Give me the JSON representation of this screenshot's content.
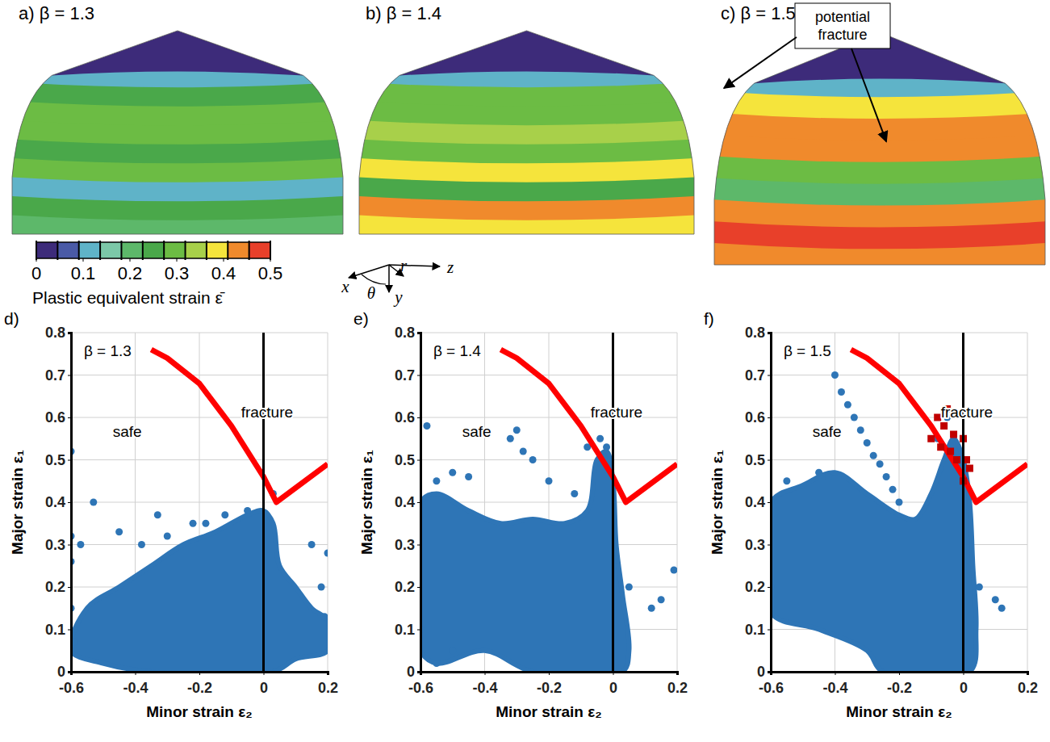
{
  "chart_data": [
    {
      "type": "contour",
      "title": "a) β = 1.3",
      "contour_bands": [
        0,
        0.12,
        0.25,
        0.28,
        0.3,
        0.25,
        0.28,
        0.1,
        0.25,
        0.22
      ]
    },
    {
      "type": "contour",
      "title": "b) β = 1.4",
      "contour_bands": [
        0,
        0.12,
        0.28,
        0.3,
        0.35,
        0.3,
        0.4,
        0.25,
        0.42,
        0.38
      ]
    },
    {
      "type": "contour",
      "title": "c) β = 1.5",
      "contour_bands": [
        0,
        0.12,
        0.4,
        0.42,
        0.45,
        0.3,
        0.22,
        0.45,
        0.48,
        0.42
      ],
      "annotations": [
        "potential fracture"
      ]
    },
    {
      "type": "scatter",
      "panel": "d)",
      "xlabel": "Minor strain ε₂",
      "ylabel": "Major strain ε₁",
      "xlim": [
        -0.6,
        0.2
      ],
      "ylim": [
        0,
        0.8
      ],
      "xticks": [
        -0.6,
        -0.4,
        -0.2,
        0,
        0.2
      ],
      "yticks": [
        0,
        0.1,
        0.2,
        0.3,
        0.4,
        0.5,
        0.6,
        0.7,
        0.8
      ],
      "grid": true,
      "vline": 0,
      "annotations": [
        "β = 1.3",
        "safe",
        "fracture"
      ],
      "series": [
        {
          "type": "area",
          "color": "#2e75b6",
          "x": [
            -0.6,
            -0.55,
            -0.45,
            -0.35,
            -0.25,
            -0.15,
            -0.05,
            0.0,
            0.03,
            0.05,
            0.1,
            0.15,
            0.2,
            0.2,
            0.1,
            0.03,
            -0.35,
            -0.5
          ],
          "values": [
            0.05,
            0.15,
            0.2,
            0.25,
            0.3,
            0.33,
            0.37,
            0.38,
            0.35,
            0.25,
            0.2,
            0.15,
            0.12,
            0.05,
            0.03,
            0,
            0,
            0.02
          ]
        },
        {
          "type": "scatter",
          "color": "#2e75b6",
          "marker": "circle",
          "x": [
            -0.6,
            -0.53,
            -0.6,
            -0.6,
            -0.57,
            -0.45,
            -0.38,
            -0.33,
            -0.3,
            -0.22,
            -0.18,
            -0.12,
            -0.05,
            0.03,
            0.15,
            0.2,
            0.18,
            0.19,
            -0.59,
            -0.6
          ],
          "values": [
            0.52,
            0.4,
            0.32,
            0.26,
            0.3,
            0.33,
            0.3,
            0.37,
            0.32,
            0.35,
            0.35,
            0.37,
            0.38,
            0.42,
            0.3,
            0.28,
            0.2,
            0.13,
            0.07,
            0.15
          ]
        },
        {
          "type": "line",
          "color": "#ff0000",
          "x": [
            -0.35,
            -0.3,
            -0.2,
            -0.1,
            0,
            0.04,
            0.2
          ],
          "values": [
            0.76,
            0.74,
            0.68,
            0.58,
            0.46,
            0.4,
            0.49
          ]
        }
      ]
    },
    {
      "type": "scatter",
      "panel": "e)",
      "xlabel": "Minor strain ε₂",
      "ylabel": "Major strain ε₁",
      "xlim": [
        -0.6,
        0.2
      ],
      "ylim": [
        0,
        0.8
      ],
      "xticks": [
        -0.6,
        -0.4,
        -0.2,
        0,
        0.2
      ],
      "yticks": [
        0,
        0.1,
        0.2,
        0.3,
        0.4,
        0.5,
        0.6,
        0.7,
        0.8
      ],
      "grid": true,
      "vline": 0,
      "annotations": [
        "β = 1.4",
        "safe",
        "fracture"
      ],
      "series": [
        {
          "type": "area",
          "color": "#2e75b6",
          "x": [
            -0.6,
            -0.6,
            -0.55,
            -0.45,
            -0.35,
            -0.25,
            -0.15,
            -0.08,
            -0.05,
            -0.02,
            0,
            0.01,
            0.03,
            0.05,
            0.03,
            -0.25,
            -0.4,
            -0.55
          ],
          "values": [
            0.05,
            0.4,
            0.42,
            0.38,
            0.35,
            0.36,
            0.35,
            0.38,
            0.5,
            0.52,
            0.45,
            0.3,
            0.18,
            0.05,
            0,
            0,
            0.05,
            0.02
          ]
        },
        {
          "type": "scatter",
          "color": "#2e75b6",
          "marker": "circle",
          "x": [
            -0.58,
            -0.55,
            -0.5,
            -0.45,
            -0.3,
            -0.32,
            -0.28,
            -0.25,
            -0.2,
            -0.12,
            -0.08,
            -0.04,
            -0.02,
            0.05,
            0.12,
            0.15,
            0.19,
            -0.6,
            -0.55,
            -0.5
          ],
          "values": [
            0.58,
            0.45,
            0.47,
            0.46,
            0.57,
            0.55,
            0.52,
            0.5,
            0.45,
            0.42,
            0.53,
            0.55,
            0.53,
            0.2,
            0.15,
            0.17,
            0.24,
            0.1,
            0.02,
            0.05
          ]
        },
        {
          "type": "line",
          "color": "#ff0000",
          "x": [
            -0.35,
            -0.3,
            -0.2,
            -0.1,
            0,
            0.04,
            0.2
          ],
          "values": [
            0.76,
            0.74,
            0.68,
            0.58,
            0.46,
            0.4,
            0.49
          ]
        }
      ]
    },
    {
      "type": "scatter",
      "panel": "f)",
      "xlabel": "Minor strain ε₂",
      "ylabel": "Major strain ε₁",
      "xlim": [
        -0.6,
        0.2
      ],
      "ylim": [
        0,
        0.8
      ],
      "xticks": [
        -0.6,
        -0.4,
        -0.2,
        0,
        0.2
      ],
      "yticks": [
        0,
        0.1,
        0.2,
        0.3,
        0.4,
        0.5,
        0.6,
        0.7,
        0.8
      ],
      "grid": true,
      "vline": 0,
      "annotations": [
        "β = 1.5",
        "safe",
        "fracture"
      ],
      "series": [
        {
          "type": "area",
          "color": "#2e75b6",
          "x": [
            -0.6,
            -0.6,
            -0.5,
            -0.4,
            -0.3,
            -0.2,
            -0.15,
            -0.1,
            -0.06,
            -0.03,
            0,
            0.02,
            0.03,
            0.04,
            0.02,
            -0.25,
            -0.3,
            -0.45
          ],
          "values": [
            0.14,
            0.4,
            0.44,
            0.47,
            0.42,
            0.37,
            0.36,
            0.42,
            0.5,
            0.55,
            0.5,
            0.4,
            0.25,
            0.1,
            0,
            0,
            0.05,
            0.1
          ]
        },
        {
          "type": "scatter",
          "color": "#2e75b6",
          "marker": "circle",
          "x": [
            -0.4,
            -0.38,
            -0.36,
            -0.34,
            -0.32,
            -0.3,
            -0.28,
            -0.26,
            -0.24,
            -0.22,
            -0.2,
            -0.45,
            -0.42,
            -0.55,
            -0.6,
            0.05,
            0.1,
            0.12,
            -0.6,
            -0.05,
            -0.08
          ],
          "values": [
            0.7,
            0.66,
            0.63,
            0.6,
            0.57,
            0.54,
            0.51,
            0.49,
            0.46,
            0.43,
            0.4,
            0.47,
            0.46,
            0.45,
            0.4,
            0.2,
            0.17,
            0.15,
            0.2,
            0.6,
            0.55
          ]
        },
        {
          "type": "line",
          "color": "#ff0000",
          "x": [
            -0.35,
            -0.3,
            -0.2,
            -0.1,
            0,
            0.04,
            0.2
          ],
          "values": [
            0.76,
            0.74,
            0.68,
            0.58,
            0.46,
            0.4,
            0.49
          ]
        },
        {
          "type": "scatter",
          "color": "#c00000",
          "marker": "square",
          "x": [
            -0.05,
            -0.08,
            -0.06,
            -0.03,
            -0.1,
            -0.04,
            0.0,
            0.02,
            0.01,
            -0.02,
            -0.07,
            0
          ],
          "values": [
            0.62,
            0.6,
            0.58,
            0.56,
            0.55,
            0.52,
            0.55,
            0.48,
            0.5,
            0.5,
            0.53,
            0.45
          ]
        }
      ]
    }
  ],
  "colorbar": {
    "title": "Plastic equivalent strain ε̄",
    "range": [
      0,
      0.5
    ],
    "ticks": [
      0,
      0.1,
      0.2,
      0.3,
      0.4,
      0.5
    ],
    "colors": [
      "#3d2b7a",
      "#4a5aa6",
      "#5fb3c8",
      "#7cc8a8",
      "#5db86a",
      "#4aa84a",
      "#6cbc44",
      "#a8d04a",
      "#f5e43c",
      "#f08a2c",
      "#e8402a"
    ]
  },
  "axes_icon": {
    "labels": [
      "x",
      "θ",
      "y",
      "r",
      "z"
    ]
  }
}
